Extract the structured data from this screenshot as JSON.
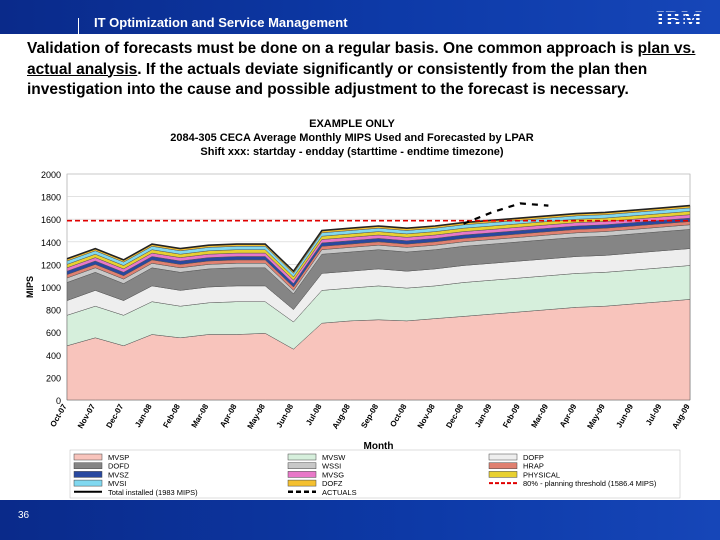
{
  "header": {
    "title": "IT Optimization and Service Management",
    "logo": "IBM"
  },
  "intro": {
    "part1": "Validation of forecasts must be done on a regular basis.  One common approach is ",
    "link": "plan vs. actual analysis",
    "part2": ".  If the actuals deviate significantly or consistently from the plan then investigation into the cause and possible adjustment to the forecast is necessary."
  },
  "footer": {
    "page_number": "36"
  },
  "chart_data": {
    "type": "area",
    "title_lines": [
      "EXAMPLE ONLY",
      "2084-305 CECA Average Monthly MIPS Used and Forecasted by LPAR",
      "Shift xxx:  startday - endday (starttime - endtime timezone)"
    ],
    "xlabel": "Month",
    "ylabel": "MIPS",
    "ylim": [
      0,
      2000
    ],
    "yticks": [
      0,
      200,
      400,
      600,
      800,
      1000,
      1200,
      1400,
      1600,
      1800,
      2000
    ],
    "categories": [
      "Oct-07",
      "Nov-07",
      "Dec-07",
      "Jan-08",
      "Feb-08",
      "Mar-08",
      "Apr-08",
      "May-08",
      "Jun-08",
      "Jul-08",
      "Aug-08",
      "Sep-08",
      "Oct-08",
      "Nov-08",
      "Dec-08",
      "Jan-09",
      "Feb-09",
      "Mar-09",
      "Apr-09",
      "May-09",
      "Jun-09",
      "Jul-09",
      "Aug-09"
    ],
    "series": [
      {
        "name": "MVSP",
        "color": "#f8c4bc",
        "values": [
          480,
          550,
          480,
          580,
          550,
          580,
          580,
          590,
          450,
          680,
          700,
          710,
          700,
          720,
          740,
          760,
          780,
          800,
          820,
          830,
          850,
          870,
          890
        ]
      },
      {
        "name": "MVSW",
        "color": "#d6efdc",
        "values": [
          270,
          280,
          270,
          290,
          280,
          280,
          290,
          280,
          240,
          290,
          290,
          300,
          290,
          290,
          300,
          300,
          300,
          300,
          300,
          300,
          300,
          300,
          300
        ]
      },
      {
        "name": "DOFP",
        "color": "#eeeeee",
        "values": [
          130,
          140,
          130,
          140,
          140,
          140,
          140,
          140,
          110,
          150,
          150,
          150,
          150,
          150,
          150,
          150,
          150,
          150,
          150,
          150,
          150,
          150,
          150
        ]
      },
      {
        "name": "DOFD",
        "color": "#858585",
        "values": [
          160,
          160,
          150,
          160,
          160,
          160,
          160,
          160,
          140,
          170,
          170,
          170,
          170,
          170,
          170,
          170,
          170,
          170,
          170,
          170,
          170,
          170,
          170
        ]
      },
      {
        "name": "WSSI",
        "color": "#c8c8c8",
        "values": [
          40,
          40,
          40,
          40,
          40,
          40,
          40,
          40,
          30,
          40,
          40,
          40,
          40,
          40,
          40,
          40,
          40,
          40,
          40,
          40,
          40,
          40,
          40
        ]
      },
      {
        "name": "HRAP",
        "color": "#e08070",
        "values": [
          30,
          30,
          30,
          30,
          30,
          30,
          30,
          30,
          30,
          30,
          30,
          30,
          30,
          30,
          30,
          30,
          30,
          30,
          30,
          30,
          30,
          30,
          30
        ]
      },
      {
        "name": "MVSZ",
        "color": "#2848a0",
        "values": [
          30,
          30,
          30,
          30,
          30,
          30,
          30,
          30,
          30,
          30,
          30,
          30,
          30,
          30,
          30,
          30,
          30,
          30,
          30,
          30,
          30,
          30,
          30
        ]
      },
      {
        "name": "MVSG",
        "color": "#e878c8",
        "values": [
          30,
          30,
          30,
          30,
          30,
          30,
          30,
          30,
          30,
          30,
          30,
          30,
          30,
          30,
          30,
          30,
          30,
          30,
          30,
          30,
          30,
          30,
          30
        ]
      },
      {
        "name": "PHYSICAL",
        "color": "#e8d030",
        "values": [
          30,
          30,
          30,
          30,
          30,
          30,
          30,
          30,
          30,
          30,
          30,
          30,
          30,
          30,
          30,
          30,
          30,
          30,
          30,
          30,
          30,
          30,
          30
        ]
      },
      {
        "name": "MVSI",
        "color": "#80d8f0",
        "values": [
          30,
          30,
          30,
          30,
          30,
          30,
          30,
          30,
          30,
          30,
          30,
          30,
          30,
          30,
          30,
          30,
          30,
          30,
          30,
          30,
          30,
          30,
          30
        ]
      },
      {
        "name": "DOFZ",
        "color": "#f4c030",
        "values": [
          20,
          20,
          20,
          20,
          20,
          20,
          20,
          20,
          20,
          20,
          20,
          20,
          20,
          20,
          20,
          20,
          20,
          20,
          20,
          20,
          20,
          20,
          20
        ]
      }
    ],
    "total_installed": {
      "name": "Total installed (1983 MIPS)",
      "value": 1983
    },
    "threshold": {
      "name": "80% - planning threshold (1586.4 MIPS)",
      "value": 1586.4,
      "color": "#e00000"
    },
    "actuals": {
      "name": "ACTUALS",
      "color": "#000000",
      "values": [
        null,
        null,
        null,
        null,
        null,
        null,
        null,
        null,
        null,
        null,
        null,
        null,
        null,
        null,
        1560,
        1660,
        1740,
        1720,
        null,
        null,
        null,
        null,
        null
      ]
    },
    "legend": [
      [
        "MVSP",
        "MVSW",
        "DOFP"
      ],
      [
        "DOFD",
        "WSSI",
        "HRAP"
      ],
      [
        "MVSZ",
        "MVSG",
        "PHYSICAL"
      ],
      [
        "MVSI",
        "DOFZ",
        "80% - planning threshold (1586.4 MIPS)"
      ],
      [
        "Total installed (1983 MIPS)",
        "ACTUALS",
        ""
      ]
    ]
  }
}
